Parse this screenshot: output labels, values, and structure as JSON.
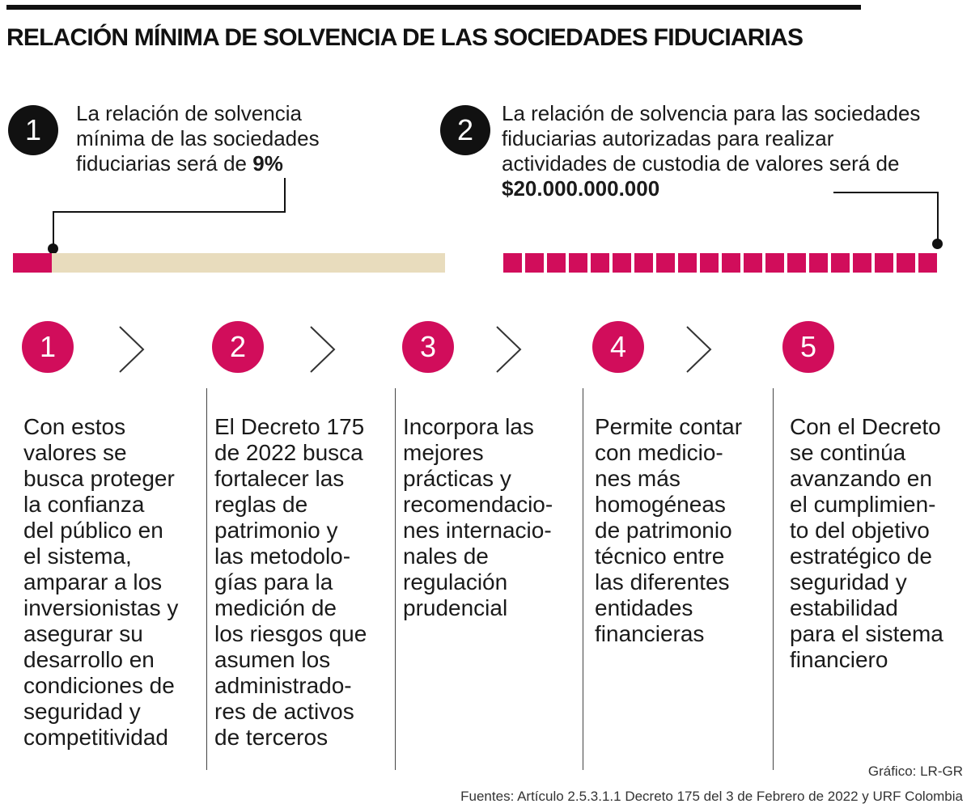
{
  "title": "RELACIÓN MÍNIMA DE SOLVENCIA DE LAS SOCIEDADES FIDUCIARIAS",
  "statement1": {
    "number": "1",
    "text": "La relación de solvencia mínima de las sociedades fiduciarias será de ",
    "value": "9%",
    "fraction": 0.09
  },
  "statement2": {
    "number": "2",
    "text": "La relación de solvencia para las sociedades fiduciarias autorizadas para realizar actividades de custodia de valores será de ",
    "value": "$20.000.000.000",
    "segments": 20
  },
  "steps": [
    {
      "number": "1",
      "text": "Con estos\nvalores se\nbusca proteger\nla confianza\ndel público en\nel sistema,\namparar a los\ninversionistas y\nasegurar su\ndesarrollo en\ncondiciones de\nseguridad y\ncompetitividad"
    },
    {
      "number": "2",
      "text": "El Decreto 175\nde 2022 busca\nfortalecer las\nreglas de\npatrimonio y\nlas metodolo-\ngías para la\nmedición de\nlos riesgos que\nasumen los\nadministrado-\nres de activos\nde terceros"
    },
    {
      "number": "3",
      "text": "Incorpora las\nmejores\nprácticas y\nrecomendacio-\nnes internacio-\nnales de\nregulación\nprudencial"
    },
    {
      "number": "4",
      "text": "Permite contar\ncon medicio-\nnes más\nhomogéneas\nde patrimonio\ntécnico entre\nlas diferentes\nentidades\nfinancieras"
    },
    {
      "number": "5",
      "text": "Con el Decreto\nse continúa\navanzando en\nel cumplimien-\nto del objetivo\nestratégico de\nseguridad y\nestabilidad\npara el sistema\nfinanciero"
    }
  ],
  "credit": "Gráfico: LR-GR",
  "sources": "Fuentes: Artículo 2.5.3.1.1 Decreto 175 del 3 de Febrero de 2022 y URF Colombia"
}
